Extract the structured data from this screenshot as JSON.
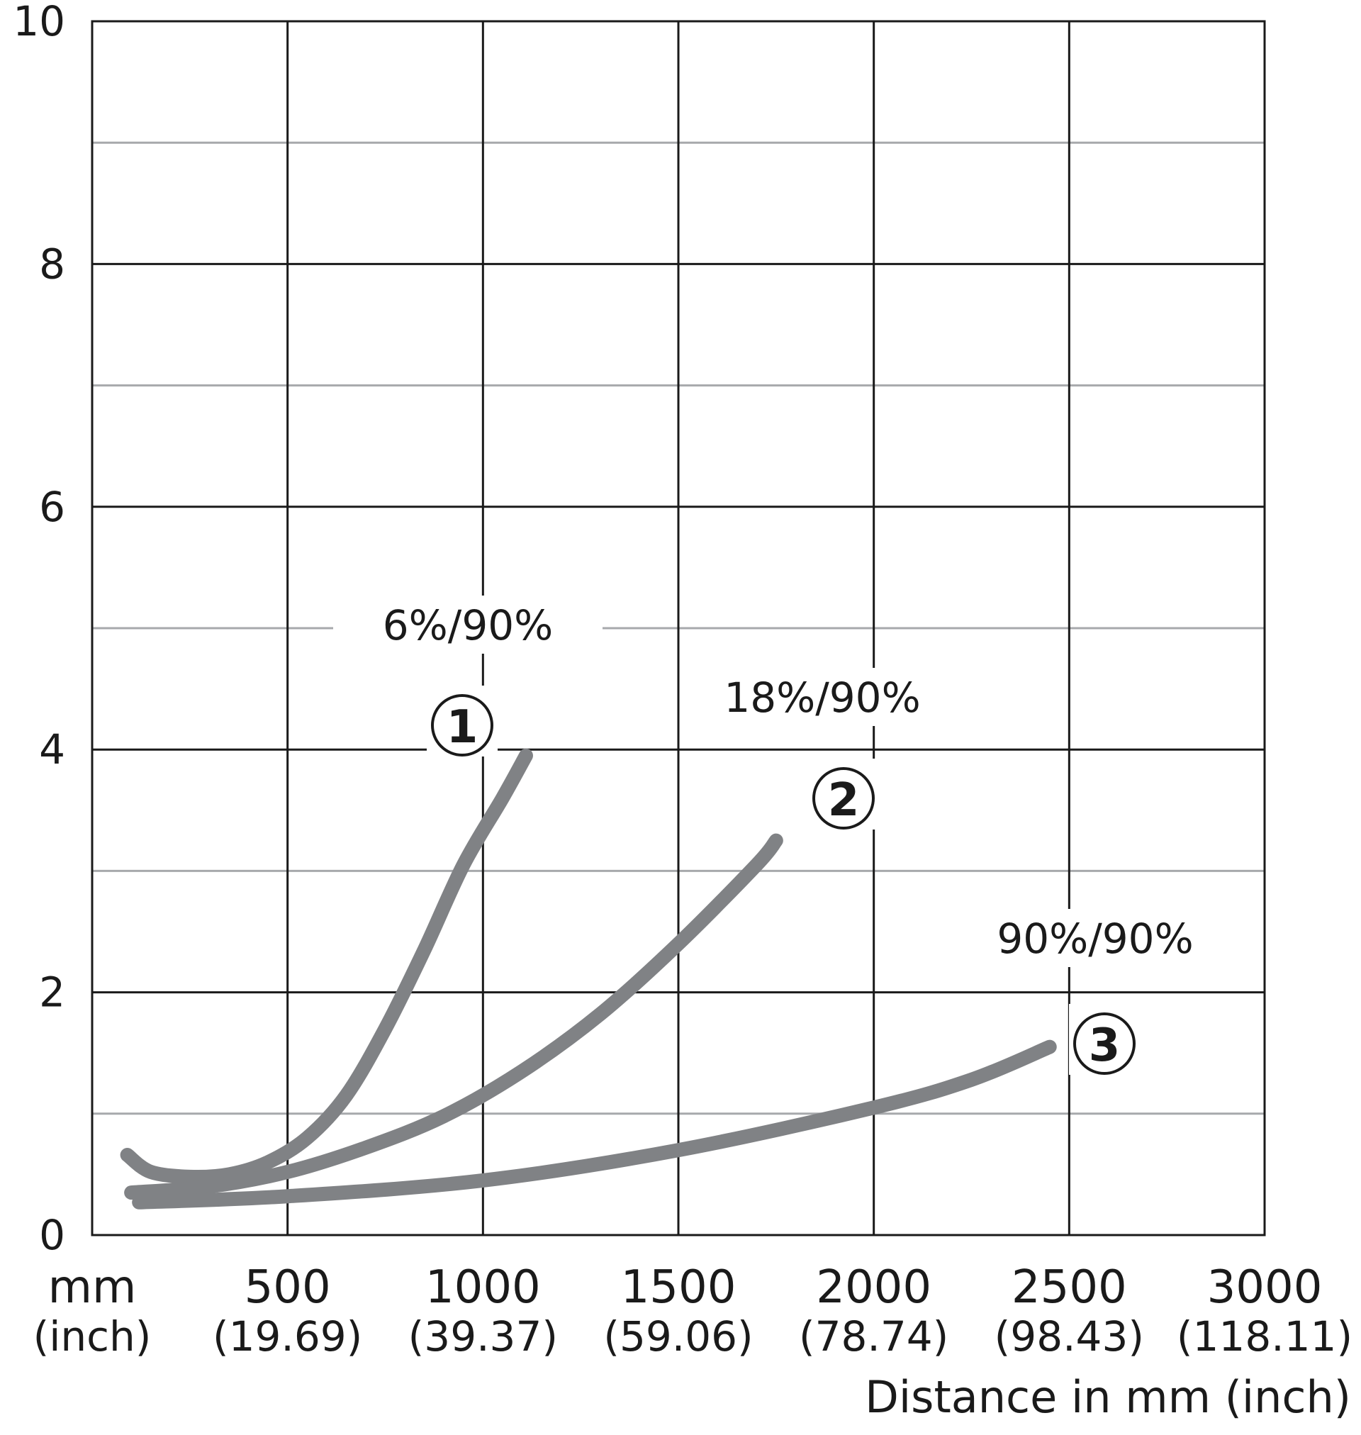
{
  "chart_data": {
    "type": "line",
    "title": "",
    "xlabel": "Distance in mm (inch)",
    "ylabel": "",
    "xlim": [
      0,
      3000
    ],
    "ylim": [
      0,
      10
    ],
    "grid": true,
    "x_ticks": [
      {
        "mm": "mm",
        "inch": "(inch)"
      },
      {
        "mm": "500",
        "inch": "(19.69)"
      },
      {
        "mm": "1000",
        "inch": "(39.37)"
      },
      {
        "mm": "1500",
        "inch": "(59.06)"
      },
      {
        "mm": "2000",
        "inch": "(78.74)"
      },
      {
        "mm": "2500",
        "inch": "(98.43)"
      },
      {
        "mm": "3000",
        "inch": "(118.11)"
      }
    ],
    "y_ticks": [
      "0",
      "2",
      "4",
      "6",
      "8",
      "10"
    ],
    "series": [
      {
        "name": "6%/90%",
        "marker": "①",
        "color": "#808285",
        "x": [
          90,
          150,
          250,
          350,
          450,
          550,
          650,
          750,
          850,
          950,
          1050,
          1110
        ],
        "y": [
          0.66,
          0.52,
          0.48,
          0.5,
          0.6,
          0.8,
          1.15,
          1.7,
          2.35,
          3.05,
          3.6,
          3.95
        ]
      },
      {
        "name": "18%/90%",
        "marker": "②",
        "color": "#808285",
        "x": [
          100,
          300,
          500,
          700,
          900,
          1100,
          1300,
          1500,
          1700,
          1750
        ],
        "y": [
          0.35,
          0.4,
          0.52,
          0.72,
          0.98,
          1.35,
          1.82,
          2.4,
          3.05,
          3.25
        ]
      },
      {
        "name": "90%/90%",
        "marker": "③",
        "color": "#808285",
        "x": [
          120,
          500,
          1000,
          1500,
          2000,
          2250,
          2450
        ],
        "y": [
          0.27,
          0.32,
          0.45,
          0.7,
          1.05,
          1.28,
          1.55
        ]
      }
    ]
  }
}
